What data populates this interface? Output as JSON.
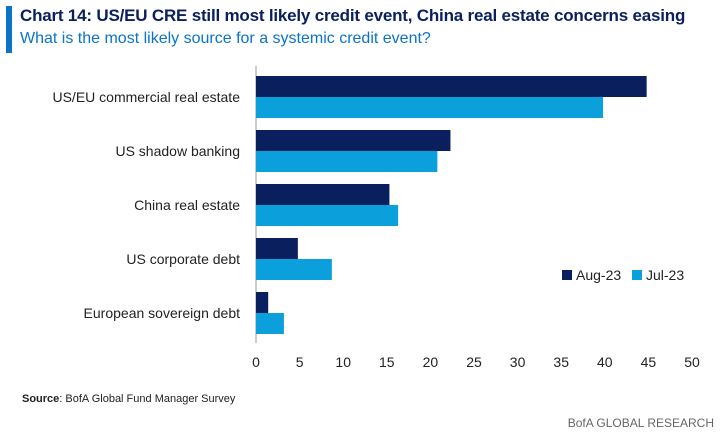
{
  "header": {
    "title": "Chart 14: US/EU CRE still most likely credit event, China real estate concerns easing",
    "subtitle": "What is the most likely source for a systemic credit event?"
  },
  "chart_data": {
    "type": "bar",
    "orientation": "horizontal",
    "categories": [
      "US/EU commercial real estate",
      "US shadow banking",
      "China real estate",
      "US corporate debt",
      "European sovereign debt"
    ],
    "series": [
      {
        "name": "Aug-23",
        "color": "#0a1f5e",
        "values": [
          44.8,
          22.3,
          15.3,
          4.8,
          1.4
        ]
      },
      {
        "name": "Jul-23",
        "color": "#0b9fdc",
        "values": [
          39.8,
          20.8,
          16.3,
          8.7,
          3.2
        ]
      }
    ],
    "xlim": [
      0,
      50
    ],
    "xticks": [
      "0",
      "5",
      "10",
      "15",
      "20",
      "25",
      "30",
      "35",
      "40",
      "45",
      "50"
    ],
    "grid": false,
    "legend_position": "right"
  },
  "footer": {
    "source_label": "Source",
    "source_text": ": BofA Global Fund Manager Survey",
    "brand": "BofA GLOBAL RESEARCH"
  }
}
